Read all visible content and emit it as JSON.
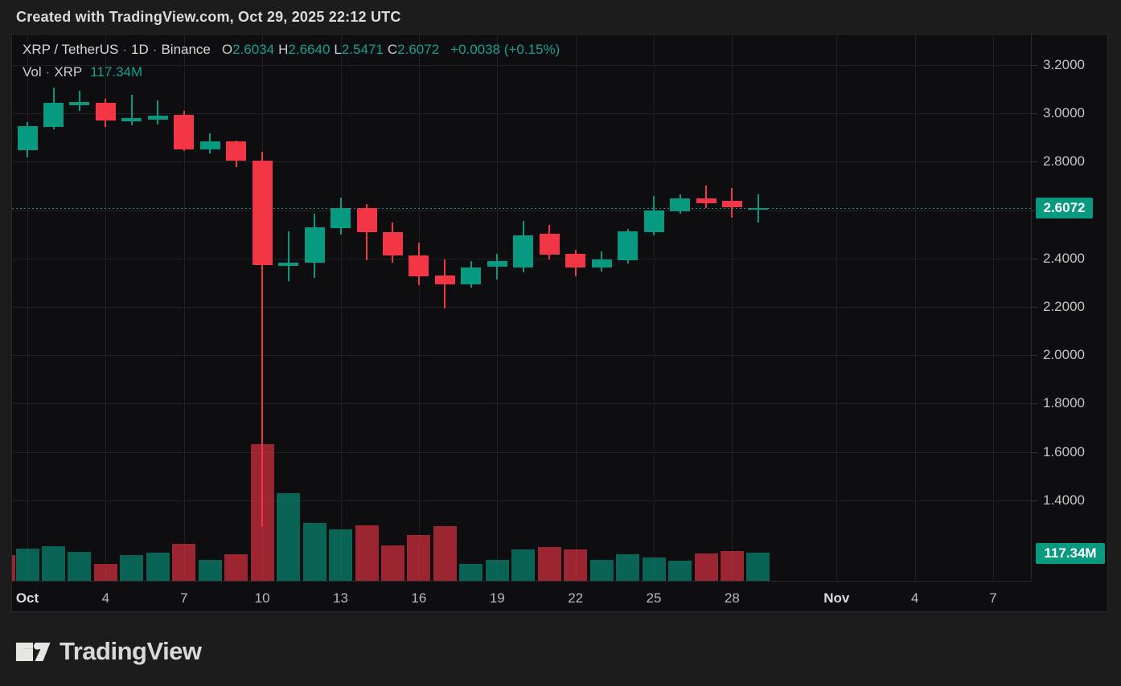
{
  "top_bar": {
    "attribution": "Created with TradingView.com, Oct 29, 2025 22:12 UTC"
  },
  "legend": {
    "symbol": "XRP / TetherUS",
    "sep1": "·",
    "interval": "1D",
    "sep2": "·",
    "exchange": "Binance",
    "o_label": "O",
    "o_value": "2.6034",
    "h_label": "H",
    "h_value": "2.6640",
    "l_label": "L",
    "l_value": "2.5471",
    "c_label": "C",
    "c_value": "2.6072",
    "change": "+0.0038 (+0.15%)",
    "vol_label": "Vol",
    "vol_sep": "·",
    "vol_symbol": "XRP",
    "vol_value": "117.34M"
  },
  "price_axis": {
    "ticks": [
      {
        "price": 3.2,
        "label": "3.2000"
      },
      {
        "price": 3.0,
        "label": "3.0000"
      },
      {
        "price": 2.8,
        "label": "2.8000"
      },
      {
        "price": 2.6,
        "label": ""
      },
      {
        "price": 2.4,
        "label": "2.4000"
      },
      {
        "price": 2.2,
        "label": "2.2000"
      },
      {
        "price": 2.0,
        "label": "2.0000"
      },
      {
        "price": 1.8,
        "label": "1.8000"
      },
      {
        "price": 1.6,
        "label": "1.6000"
      },
      {
        "price": 1.4,
        "label": "1.4000"
      }
    ],
    "last_price_label": "2.6072",
    "volume_badge_label": "117.34M"
  },
  "time_axis": {
    "ticks": [
      {
        "label": "Oct",
        "day": 1,
        "major": true
      },
      {
        "label": "4",
        "day": 4,
        "major": false
      },
      {
        "label": "7",
        "day": 7,
        "major": false
      },
      {
        "label": "10",
        "day": 10,
        "major": false
      },
      {
        "label": "13",
        "day": 13,
        "major": false
      },
      {
        "label": "16",
        "day": 16,
        "major": false
      },
      {
        "label": "19",
        "day": 19,
        "major": false
      },
      {
        "label": "22",
        "day": 22,
        "major": false
      },
      {
        "label": "25",
        "day": 25,
        "major": false
      },
      {
        "label": "28",
        "day": 28,
        "major": false
      },
      {
        "label": "Nov",
        "day": 32,
        "major": true
      },
      {
        "label": "4",
        "day": 35,
        "major": false
      },
      {
        "label": "7",
        "day": 38,
        "major": false
      }
    ]
  },
  "chart_data": {
    "type": "candlestick_with_volume",
    "title": "XRP / TetherUS · 1D · Binance",
    "x_unit": "day",
    "price_range_visible": [
      1.07,
      3.33
    ],
    "grid": true,
    "last_price": 2.6072,
    "last_price_line_color": "#089981",
    "volume_unit": "M XRP",
    "partial_prev_bar": {
      "date": "Sep 30",
      "volume_m": 107,
      "direction": "down"
    },
    "candles": [
      {
        "date": "Oct 1",
        "open": 2.848,
        "high": 2.964,
        "low": 2.818,
        "close": 2.947,
        "volume_m": 134
      },
      {
        "date": "Oct 2",
        "open": 2.944,
        "high": 3.107,
        "low": 2.934,
        "close": 3.044,
        "volume_m": 144
      },
      {
        "date": "Oct 3",
        "open": 3.034,
        "high": 3.094,
        "low": 3.011,
        "close": 3.047,
        "volume_m": 121
      },
      {
        "date": "Oct 4",
        "open": 3.044,
        "high": 3.06,
        "low": 2.945,
        "close": 2.971,
        "volume_m": 70
      },
      {
        "date": "Oct 5",
        "open": 2.967,
        "high": 3.077,
        "low": 2.95,
        "close": 2.981,
        "volume_m": 107
      },
      {
        "date": "Oct 6",
        "open": 2.973,
        "high": 3.054,
        "low": 2.953,
        "close": 2.99,
        "volume_m": 117
      },
      {
        "date": "Oct 7",
        "open": 2.993,
        "high": 3.011,
        "low": 2.846,
        "close": 2.851,
        "volume_m": 154
      },
      {
        "date": "Oct 8",
        "open": 2.851,
        "high": 2.918,
        "low": 2.834,
        "close": 2.885,
        "volume_m": 87
      },
      {
        "date": "Oct 9",
        "open": 2.884,
        "high": 2.888,
        "low": 2.778,
        "close": 2.804,
        "volume_m": 111
      },
      {
        "date": "Oct 10",
        "open": 2.804,
        "high": 2.841,
        "low": 1.29,
        "close": 2.373,
        "volume_m": 570
      },
      {
        "date": "Oct 11",
        "open": 2.369,
        "high": 2.512,
        "low": 2.306,
        "close": 2.383,
        "volume_m": 365
      },
      {
        "date": "Oct 12",
        "open": 2.383,
        "high": 2.585,
        "low": 2.32,
        "close": 2.529,
        "volume_m": 241
      },
      {
        "date": "Oct 13",
        "open": 2.525,
        "high": 2.651,
        "low": 2.498,
        "close": 2.608,
        "volume_m": 215
      },
      {
        "date": "Oct 14",
        "open": 2.608,
        "high": 2.625,
        "low": 2.391,
        "close": 2.508,
        "volume_m": 231
      },
      {
        "date": "Oct 15",
        "open": 2.508,
        "high": 2.548,
        "low": 2.383,
        "close": 2.412,
        "volume_m": 148
      },
      {
        "date": "Oct 16",
        "open": 2.412,
        "high": 2.465,
        "low": 2.288,
        "close": 2.326,
        "volume_m": 191
      },
      {
        "date": "Oct 17",
        "open": 2.329,
        "high": 2.395,
        "low": 2.192,
        "close": 2.293,
        "volume_m": 228
      },
      {
        "date": "Oct 18",
        "open": 2.293,
        "high": 2.391,
        "low": 2.279,
        "close": 2.362,
        "volume_m": 70
      },
      {
        "date": "Oct 19",
        "open": 2.366,
        "high": 2.419,
        "low": 2.313,
        "close": 2.389,
        "volume_m": 87
      },
      {
        "date": "Oct 20",
        "open": 2.362,
        "high": 2.555,
        "low": 2.342,
        "close": 2.495,
        "volume_m": 131
      },
      {
        "date": "Oct 21",
        "open": 2.502,
        "high": 2.538,
        "low": 2.395,
        "close": 2.415,
        "volume_m": 141
      },
      {
        "date": "Oct 22",
        "open": 2.419,
        "high": 2.435,
        "low": 2.326,
        "close": 2.362,
        "volume_m": 131
      },
      {
        "date": "Oct 23",
        "open": 2.362,
        "high": 2.428,
        "low": 2.345,
        "close": 2.395,
        "volume_m": 87
      },
      {
        "date": "Oct 24",
        "open": 2.392,
        "high": 2.522,
        "low": 2.379,
        "close": 2.512,
        "volume_m": 111
      },
      {
        "date": "Oct 25",
        "open": 2.508,
        "high": 2.658,
        "low": 2.495,
        "close": 2.598,
        "volume_m": 97
      },
      {
        "date": "Oct 26",
        "open": 2.595,
        "high": 2.664,
        "low": 2.585,
        "close": 2.648,
        "volume_m": 84
      },
      {
        "date": "Oct 27",
        "open": 2.648,
        "high": 2.701,
        "low": 2.608,
        "close": 2.628,
        "volume_m": 114
      },
      {
        "date": "Oct 28",
        "open": 2.638,
        "high": 2.691,
        "low": 2.568,
        "close": 2.611,
        "volume_m": 124
      },
      {
        "date": "Oct 29",
        "open": 2.6034,
        "high": 2.664,
        "low": 2.5471,
        "close": 2.6072,
        "volume_m": 117.34
      }
    ]
  },
  "colors": {
    "up": "#089981",
    "down": "#f23645",
    "volume_up": "rgba(8,153,129,0.62)",
    "volume_down": "rgba(242,54,69,0.62)",
    "background_outer": "#1c1c1c",
    "background_chart": "#0e0e10",
    "grid": "#1e2024",
    "axis_text": "#c2c5cc",
    "badge_text": "#ffffff"
  },
  "footer": {
    "brand": "TradingView"
  }
}
